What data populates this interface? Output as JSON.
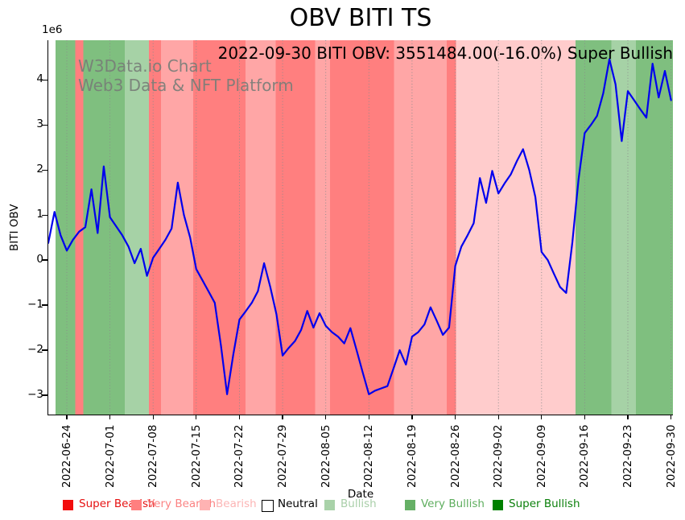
{
  "header": {
    "title": "OBV BITI TS",
    "subtitle": "2022-09-30 BITI OBV: 3551484.00(-16.0%) Super Bullish"
  },
  "watermark": {
    "line1": "W3Data.io Chart",
    "line2": "Web3 Data & NFT Platform"
  },
  "y_axis": {
    "label": "BITI OBV",
    "offset_text": "1e6",
    "ticks": [
      "4",
      "3",
      "2",
      "1",
      "0",
      "−1",
      "−2",
      "−3"
    ]
  },
  "x_axis": {
    "label": "Date",
    "ticks": [
      "2022-06-24",
      "2022-07-01",
      "2022-07-08",
      "2022-07-15",
      "2022-07-22",
      "2022-07-29",
      "2022-08-05",
      "2022-08-12",
      "2022-08-19",
      "2022-08-26",
      "2022-09-02",
      "2022-09-09",
      "2022-09-16",
      "2022-09-23",
      "2022-09-30"
    ],
    "tick_days": [
      3,
      10,
      17,
      24,
      31,
      38,
      45,
      52,
      59,
      66,
      73,
      80,
      87,
      94,
      101
    ]
  },
  "legend": {
    "items": [
      {
        "label": "Super Bearish",
        "swatch_color": "#f20d0d",
        "text_color": "#e61212",
        "border": "none"
      },
      {
        "label": "Very Bearish",
        "swatch_color": "#ff7f7f",
        "text_color": "#fb8383",
        "border": "none"
      },
      {
        "label": "Bearish",
        "swatch_color": "#ffb3b3",
        "text_color": "#fcb5b5",
        "border": "none"
      },
      {
        "label": "Neutral",
        "swatch_color": "#ffffff",
        "text_color": "#000000",
        "border": "#000000"
      },
      {
        "label": "Bullish",
        "swatch_color": "#a9d2a9",
        "text_color": "#a9cfa9",
        "border": "none"
      },
      {
        "label": "Very Bullish",
        "swatch_color": "#66b066",
        "text_color": "#5fae5f",
        "border": "none"
      },
      {
        "label": "Super Bullish",
        "swatch_color": "#008000",
        "text_color": "#0c800c",
        "border": "none"
      }
    ]
  },
  "chart_data": {
    "type": "line",
    "title": "OBV BITI TS",
    "xlabel": "Date",
    "ylabel": "BITI OBV",
    "unit": "1e6",
    "ylim_e6": [
      -3.43,
      4.88
    ],
    "grid": "vertical dotted gridlines at weekly ticks",
    "legend_position": "below x-axis",
    "line_color": "#0000ee",
    "gridline_color": "#8a8a8a",
    "latest": {
      "date": "2022-09-30",
      "obv": 3551484.0,
      "change_pct": -16.0,
      "signal": "Super Bullish"
    },
    "x": [
      "2022-06-21",
      "2022-06-22",
      "2022-06-23",
      "2022-06-24",
      "2022-06-25",
      "2022-06-26",
      "2022-06-27",
      "2022-06-28",
      "2022-06-29",
      "2022-06-30",
      "2022-07-01",
      "2022-07-02",
      "2022-07-03",
      "2022-07-04",
      "2022-07-05",
      "2022-07-06",
      "2022-07-07",
      "2022-07-08",
      "2022-07-09",
      "2022-07-10",
      "2022-07-11",
      "2022-07-12",
      "2022-07-13",
      "2022-07-14",
      "2022-07-15",
      "2022-07-16",
      "2022-07-17",
      "2022-07-18",
      "2022-07-19",
      "2022-07-20",
      "2022-07-21",
      "2022-07-22",
      "2022-07-23",
      "2022-07-24",
      "2022-07-25",
      "2022-07-26",
      "2022-07-27",
      "2022-07-28",
      "2022-07-29",
      "2022-07-30",
      "2022-07-31",
      "2022-08-01",
      "2022-08-02",
      "2022-08-03",
      "2022-08-04",
      "2022-08-05",
      "2022-08-06",
      "2022-08-07",
      "2022-08-08",
      "2022-08-09",
      "2022-08-10",
      "2022-08-11",
      "2022-08-12",
      "2022-08-13",
      "2022-08-14",
      "2022-08-15",
      "2022-08-16",
      "2022-08-17",
      "2022-08-18",
      "2022-08-19",
      "2022-08-20",
      "2022-08-21",
      "2022-08-22",
      "2022-08-23",
      "2022-08-24",
      "2022-08-25",
      "2022-08-26",
      "2022-08-27",
      "2022-08-28",
      "2022-08-29",
      "2022-08-30",
      "2022-08-31",
      "2022-09-01",
      "2022-09-02",
      "2022-09-03",
      "2022-09-04",
      "2022-09-05",
      "2022-09-06",
      "2022-09-07",
      "2022-09-08",
      "2022-09-09",
      "2022-09-10",
      "2022-09-11",
      "2022-09-12",
      "2022-09-13",
      "2022-09-14",
      "2022-09-15",
      "2022-09-16",
      "2022-09-17",
      "2022-09-18",
      "2022-09-19",
      "2022-09-20",
      "2022-09-21",
      "2022-09-22",
      "2022-09-23",
      "2022-09-24",
      "2022-09-25",
      "2022-09-26",
      "2022-09-27",
      "2022-09-28",
      "2022-09-29",
      "2022-09-30"
    ],
    "series": [
      {
        "name": "BITI OBV (millions)",
        "values": [
          0.38,
          1.07,
          0.55,
          0.21,
          0.45,
          0.63,
          0.73,
          1.57,
          0.6,
          2.08,
          0.95,
          0.75,
          0.55,
          0.3,
          -0.07,
          0.25,
          -0.35,
          0.05,
          0.25,
          0.45,
          0.7,
          1.72,
          1.0,
          0.5,
          -0.2,
          -0.45,
          -0.7,
          -0.95,
          -1.9,
          -2.98,
          -2.1,
          -1.32,
          -1.14,
          -0.95,
          -0.69,
          -0.07,
          -0.6,
          -1.2,
          -2.12,
          -1.95,
          -1.8,
          -1.55,
          -1.13,
          -1.5,
          -1.18,
          -1.46,
          -1.6,
          -1.7,
          -1.85,
          -1.51,
          -2.0,
          -2.5,
          -2.98,
          -2.9,
          -2.85,
          -2.8,
          -2.4,
          -2.0,
          -2.32,
          -1.7,
          -1.6,
          -1.43,
          -1.05,
          -1.35,
          -1.66,
          -1.5,
          -0.13,
          0.3,
          0.55,
          0.82,
          1.82,
          1.27,
          1.98,
          1.48,
          1.7,
          1.9,
          2.2,
          2.46,
          2.0,
          1.4,
          0.18,
          0.0,
          -0.3,
          -0.6,
          -0.73,
          0.4,
          1.8,
          2.82,
          3.0,
          3.2,
          3.7,
          4.46,
          3.9,
          2.64,
          3.75,
          3.55,
          3.35,
          3.16,
          4.36,
          3.61,
          4.2,
          3.55
        ]
      }
    ],
    "bands": [
      {
        "start_day": 1.2,
        "end_day": 4.4,
        "color": "#7fbf7f",
        "sentiment": "Very Bullish"
      },
      {
        "start_day": 4.4,
        "end_day": 5.7,
        "color": "#ff7f7f",
        "sentiment": "Very Bearish"
      },
      {
        "start_day": 5.7,
        "end_day": 12.4,
        "color": "#7fbf7f",
        "sentiment": "Very Bullish"
      },
      {
        "start_day": 12.4,
        "end_day": 16.3,
        "color": "#a6d2a6",
        "sentiment": "Bullish"
      },
      {
        "start_day": 16.3,
        "end_day": 18.3,
        "color": "#ff7f7f",
        "sentiment": "Very Bearish"
      },
      {
        "start_day": 18.3,
        "end_day": 23.5,
        "color": "#ffa6a6",
        "sentiment": "Bearish"
      },
      {
        "start_day": 23.5,
        "end_day": 32.0,
        "color": "#ff7f7f",
        "sentiment": "Very Bearish"
      },
      {
        "start_day": 32.0,
        "end_day": 36.9,
        "color": "#ffa6a6",
        "sentiment": "Bearish"
      },
      {
        "start_day": 36.9,
        "end_day": 43.3,
        "color": "#ff7f7f",
        "sentiment": "Very Bearish"
      },
      {
        "start_day": 43.3,
        "end_day": 45.7,
        "color": "#ffa6a6",
        "sentiment": "Bearish"
      },
      {
        "start_day": 45.7,
        "end_day": 56.1,
        "color": "#ff7f7f",
        "sentiment": "Very Bearish"
      },
      {
        "start_day": 56.1,
        "end_day": 64.6,
        "color": "#ffa6a6",
        "sentiment": "Bearish"
      },
      {
        "start_day": 64.6,
        "end_day": 66.1,
        "color": "#ff7f7f",
        "sentiment": "Very Bearish"
      },
      {
        "start_day": 66.1,
        "end_day": 85.5,
        "color": "#ffcccc",
        "sentiment": "Bearish"
      },
      {
        "start_day": 85.5,
        "end_day": 91.3,
        "color": "#7fbf7f",
        "sentiment": "Very Bullish"
      },
      {
        "start_day": 91.3,
        "end_day": 95.3,
        "color": "#a6d2a6",
        "sentiment": "Bullish"
      },
      {
        "start_day": 95.3,
        "end_day": 101.4,
        "color": "#7fbf7f",
        "sentiment": "Very Bullish"
      }
    ]
  }
}
